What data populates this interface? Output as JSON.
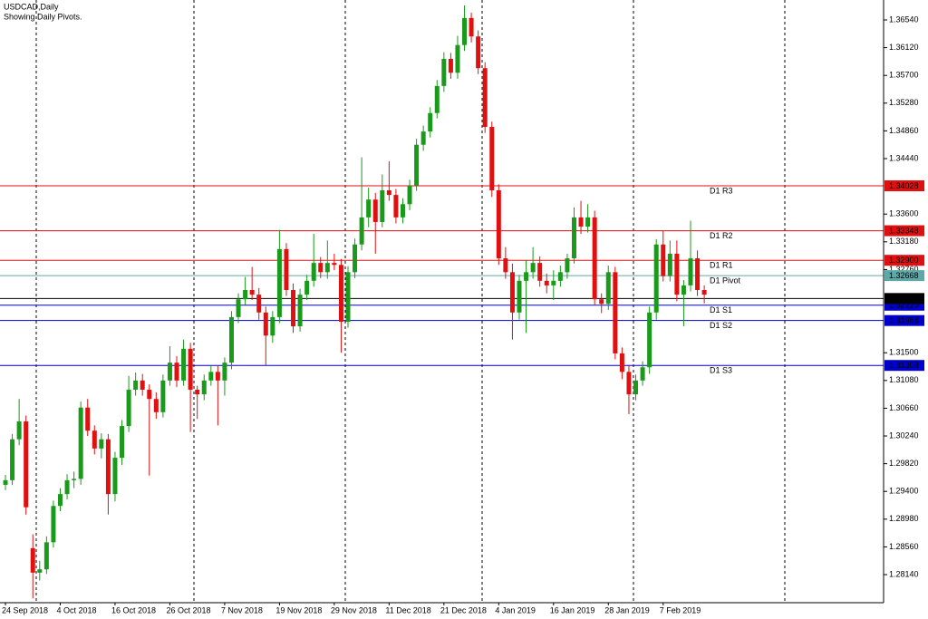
{
  "chart_data": {
    "type": "candlestick",
    "title": "USDCAD,Daily",
    "subtitle": "Showing Daily Pivots.",
    "categories": [
      "24 Sep 2018",
      null,
      null,
      null,
      null,
      null,
      null,
      null,
      "4 Oct 2018",
      null,
      null,
      null,
      null,
      null,
      null,
      null,
      "16 Oct 2018",
      null,
      null,
      null,
      null,
      null,
      null,
      null,
      "26 Oct 2018",
      null,
      null,
      null,
      null,
      null,
      null,
      null,
      "7 Nov 2018",
      null,
      null,
      null,
      null,
      null,
      null,
      null,
      "19 Nov 2018",
      null,
      null,
      null,
      null,
      null,
      null,
      null,
      "29 Nov 2018",
      null,
      null,
      null,
      null,
      null,
      null,
      null,
      "11 Dec 2018",
      null,
      null,
      null,
      null,
      null,
      null,
      null,
      "21 Dec 2018",
      null,
      null,
      null,
      null,
      null,
      null,
      null,
      "4 Jan 2019",
      null,
      null,
      null,
      null,
      null,
      null,
      null,
      "16 Jan 2019",
      null,
      null,
      null,
      null,
      null,
      null,
      null,
      "28 Jan 2019",
      null,
      null,
      null,
      null,
      null,
      null,
      null,
      "7 Feb 2019",
      null,
      null,
      null,
      null,
      null,
      null
    ],
    "open": [
      1.295,
      1.2957,
      1.3019,
      1.3046,
      1.2854,
      1.2817,
      1.2822,
      1.2863,
      1.2918,
      1.2936,
      1.2957,
      1.2959,
      1.3067,
      1.3032,
      1.3005,
      1.3019,
      1.2936,
      1.2991,
      1.3039,
      1.3094,
      1.3108,
      1.3094,
      1.308,
      1.306,
      1.3108,
      1.3135,
      1.3108,
      1.3156,
      1.3094,
      1.3087,
      1.3108,
      1.3121,
      1.3108,
      1.3135,
      1.3204,
      1.3231,
      1.3245,
      1.3238,
      1.3211,
      1.3176,
      1.3204,
      1.3307,
      1.3245,
      1.319,
      1.3238,
      1.3259,
      1.3286,
      1.3272,
      1.3286,
      1.3283,
      1.3197,
      1.3272,
      1.3314,
      1.3355,
      1.3382,
      1.3348,
      1.3396,
      1.3389,
      1.3355,
      1.3375,
      1.3403,
      1.3465,
      1.3485,
      1.3513,
      1.3554,
      1.3595,
      1.3574,
      1.3616,
      1.3657,
      1.3629,
      1.3581,
      1.3492,
      1.3396,
      1.3293,
      1.3272,
      1.3211,
      1.3259,
      1.3272,
      1.3286,
      1.3259,
      1.3252,
      1.3259,
      1.3272,
      1.3293,
      1.3355,
      1.3341,
      1.3355,
      1.3231,
      1.3224,
      1.3272,
      1.3149,
      1.3121,
      1.3087,
      1.3108,
      1.3128,
      1.3211,
      1.3314,
      1.3266,
      1.33,
      1.3238,
      1.3252,
      1.3293,
      1.3245
    ],
    "high": [
      1.2965,
      1.3027,
      1.308,
      1.3055,
      1.2875,
      1.2835,
      1.2872,
      1.2926,
      1.2945,
      1.2966,
      1.297,
      1.3076,
      1.308,
      1.304,
      1.3028,
      1.3027,
      1.3,
      1.3048,
      1.3115,
      1.312,
      1.3118,
      1.3102,
      1.309,
      1.3117,
      1.316,
      1.3145,
      1.317,
      1.3165,
      1.31,
      1.3117,
      1.313,
      1.313,
      1.3143,
      1.3213,
      1.324,
      1.3265,
      1.328,
      1.3248,
      1.322,
      1.3213,
      1.3336,
      1.3316,
      1.3255,
      1.3247,
      1.3268,
      1.333,
      1.3295,
      1.332,
      1.33,
      1.3292,
      1.3281,
      1.3323,
      1.3446,
      1.34,
      1.3392,
      1.342,
      1.344,
      1.3398,
      1.3384,
      1.3412,
      1.3474,
      1.3494,
      1.3522,
      1.3563,
      1.3605,
      1.3604,
      1.363,
      1.3676,
      1.3665,
      1.3638,
      1.359,
      1.35,
      1.3405,
      1.331,
      1.3285,
      1.3268,
      1.329,
      1.331,
      1.3296,
      1.327,
      1.3275,
      1.3282,
      1.33,
      1.337,
      1.338,
      1.3375,
      1.3365,
      1.324,
      1.3282,
      1.328,
      1.3158,
      1.313,
      1.3117,
      1.3137,
      1.322,
      1.3322,
      1.3335,
      1.332,
      1.332,
      1.326,
      1.335,
      1.3305,
      1.3252
    ],
    "low": [
      1.2942,
      1.295,
      1.301,
      1.2905,
      1.2778,
      1.2805,
      1.2815,
      1.2855,
      1.291,
      1.2928,
      1.2945,
      1.295,
      1.3024,
      1.2996,
      1.299,
      1.2905,
      1.2925,
      1.298,
      1.303,
      1.3085,
      1.3085,
      1.2964,
      1.305,
      1.3052,
      1.31,
      1.3098,
      1.31,
      1.303,
      1.305,
      1.3078,
      1.31,
      1.304,
      1.3085,
      1.3125,
      1.3195,
      1.3222,
      1.323,
      1.32,
      1.313,
      1.3165,
      1.3195,
      1.3236,
      1.318,
      1.3182,
      1.323,
      1.325,
      1.3263,
      1.3262,
      1.3275,
      1.315,
      1.3188,
      1.3263,
      1.3305,
      1.334,
      1.33,
      1.334,
      1.338,
      1.3346,
      1.3346,
      1.3366,
      1.3395,
      1.3456,
      1.3476,
      1.3505,
      1.3545,
      1.3565,
      1.3565,
      1.3607,
      1.362,
      1.3572,
      1.3483,
      1.3386,
      1.3283,
      1.3262,
      1.317,
      1.32,
      1.318,
      1.3262,
      1.325,
      1.324,
      1.323,
      1.325,
      1.3262,
      1.3285,
      1.333,
      1.3332,
      1.3222,
      1.321,
      1.3215,
      1.314,
      1.311,
      1.3057,
      1.3078,
      1.31,
      1.3118,
      1.32,
      1.3258,
      1.3258,
      1.3228,
      1.319,
      1.3243,
      1.3236,
      1.3225
    ],
    "close": [
      1.2957,
      1.3019,
      1.3046,
      1.2916,
      1.2817,
      1.2822,
      1.2863,
      1.2918,
      1.2936,
      1.2957,
      1.2959,
      1.3067,
      1.3032,
      1.3005,
      1.3019,
      1.2936,
      1.2991,
      1.3039,
      1.3094,
      1.3108,
      1.3094,
      1.308,
      1.306,
      1.3108,
      1.3135,
      1.3108,
      1.3156,
      1.3094,
      1.3087,
      1.3108,
      1.3121,
      1.3108,
      1.3135,
      1.3204,
      1.3231,
      1.3245,
      1.3238,
      1.3211,
      1.3176,
      1.3204,
      1.3307,
      1.3245,
      1.319,
      1.3238,
      1.3259,
      1.3286,
      1.3272,
      1.3286,
      1.3283,
      1.3197,
      1.3272,
      1.3314,
      1.3355,
      1.3382,
      1.3348,
      1.3396,
      1.3389,
      1.3355,
      1.3375,
      1.3403,
      1.3465,
      1.3485,
      1.3513,
      1.3554,
      1.3595,
      1.3574,
      1.3616,
      1.3657,
      1.3629,
      1.3581,
      1.3492,
      1.3396,
      1.3293,
      1.3272,
      1.3211,
      1.3259,
      1.3272,
      1.3286,
      1.3259,
      1.3252,
      1.3259,
      1.3272,
      1.3293,
      1.3355,
      1.3341,
      1.3355,
      1.3231,
      1.3224,
      1.3272,
      1.3149,
      1.3121,
      1.3087,
      1.3108,
      1.3128,
      1.3211,
      1.3314,
      1.3266,
      1.33,
      1.3238,
      1.3252,
      1.3293,
      1.3245,
      1.3238
    ],
    "up_color": "#1a9a1a",
    "down_color": "#e01010",
    "ylim": [
      1.27715,
      1.36842
    ],
    "yticks": [
      {
        "value": 1.3654,
        "label": "1.36540"
      },
      {
        "value": 1.3612,
        "label": "1.36120"
      },
      {
        "value": 1.357,
        "label": "1.35700"
      },
      {
        "value": 1.3528,
        "label": "1.35280"
      },
      {
        "value": 1.3486,
        "label": "1.34860"
      },
      {
        "value": 1.3444,
        "label": "1.34440"
      },
      {
        "value": 1.336,
        "label": "1.33600"
      },
      {
        "value": 1.3318,
        "label": "1.33180"
      },
      {
        "value": 1.3276,
        "label": "1.32760"
      },
      {
        "value": 1.315,
        "label": "1.31500"
      },
      {
        "value": 1.3108,
        "label": "1.31080"
      },
      {
        "value": 1.3066,
        "label": "1.30660"
      },
      {
        "value": 1.3024,
        "label": "1.30240"
      },
      {
        "value": 1.2982,
        "label": "1.29820"
      },
      {
        "value": 1.294,
        "label": "1.29400"
      },
      {
        "value": 1.2898,
        "label": "1.28980"
      },
      {
        "value": 1.2856,
        "label": "1.28560"
      },
      {
        "value": 1.2814,
        "label": "1.28140"
      }
    ],
    "levels": [
      {
        "name": "D1 R3",
        "value": 1.34028,
        "label": "1.34028",
        "color": "#e01010"
      },
      {
        "name": "D1 R2",
        "value": 1.33348,
        "label": "1.33348",
        "color": "#e01010"
      },
      {
        "name": "D1 R1",
        "value": 1.329,
        "label": "1.32900",
        "color": "#e01010"
      },
      {
        "name": "D1 Pivot",
        "value": 1.32668,
        "label": "1.32668",
        "color": "#5fa8a8"
      },
      {
        "name": "D1 S1",
        "value": 1.3222,
        "label": "1.32220",
        "color": "#0000cc"
      },
      {
        "name": "D1 S2",
        "value": 1.31988,
        "label": "1.31988",
        "color": "#0000cc"
      },
      {
        "name": "D1 S3",
        "value": 1.31308,
        "label": "1.31308",
        "color": "#0000cc"
      }
    ],
    "current_price": {
      "value": 1.32322,
      "label": "1.32322",
      "color": "#000000"
    }
  }
}
